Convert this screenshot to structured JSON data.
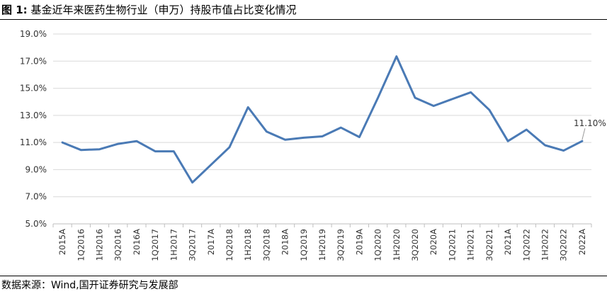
{
  "title": {
    "figure_label": "图 1:",
    "text": "基金近年来医药生物行业（申万）持股市值占比变化情况"
  },
  "source": "数据来源：Wind,国开证券研究与发展部",
  "colors": {
    "line": "#4a7ab5",
    "grid": "#d9d9d9",
    "axis": "#bfbfbf"
  },
  "chart_data": {
    "type": "line",
    "title": "基金近年来医药生物行业（申万）持股市值占比变化情况",
    "xlabel": "",
    "ylabel": "",
    "ylim": [
      5.0,
      19.0
    ],
    "yticks": [
      "5.0%",
      "7.0%",
      "9.0%",
      "11.0%",
      "13.0%",
      "15.0%",
      "17.0%",
      "19.0%"
    ],
    "grid": "horizontal",
    "categories": [
      "2015A",
      "1Q2016",
      "1H2016",
      "3Q2016",
      "2016A",
      "1Q2017",
      "1H2017",
      "3Q2017",
      "2017A",
      "1Q2018",
      "1H2018",
      "3Q2018",
      "2018A",
      "1Q2019",
      "1H2019",
      "3Q2019",
      "2019A",
      "1Q2020",
      "1H2020",
      "3Q2020",
      "2020A",
      "1Q2021",
      "1H2021",
      "3Q2021",
      "2021A",
      "1Q2022",
      "1H2022",
      "3Q2022",
      "2022A"
    ],
    "series": [
      {
        "values": [
          11.0,
          10.45,
          10.5,
          10.9,
          11.1,
          10.35,
          10.35,
          8.05,
          9.35,
          10.65,
          13.6,
          11.8,
          11.2,
          11.35,
          11.45,
          12.1,
          11.4,
          14.3,
          17.35,
          14.3,
          13.7,
          14.2,
          14.7,
          13.4,
          11.1,
          11.95,
          10.8,
          10.4,
          11.1
        ]
      }
    ],
    "annotations": [
      {
        "category": "2022A",
        "text": "11.10%"
      }
    ]
  }
}
